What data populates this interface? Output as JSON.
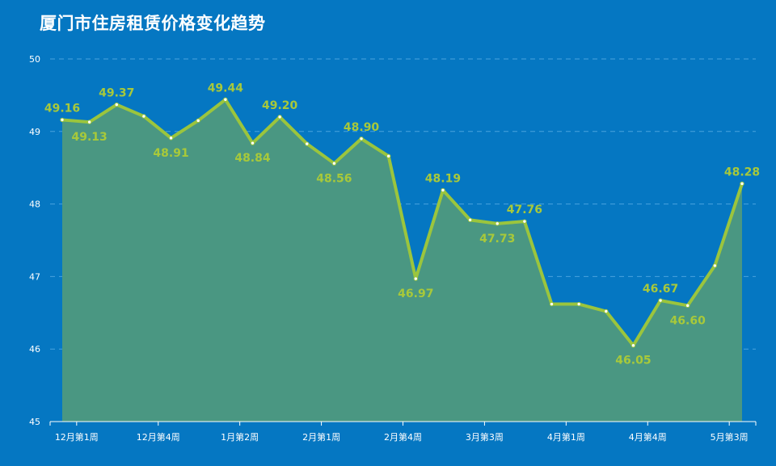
{
  "title": "厦门市住房租赁价格变化趋势",
  "chart_data": {
    "type": "area",
    "title": "厦门市住房租赁价格变化趋势",
    "xlabel": "",
    "ylabel": "",
    "ylim": [
      45,
      50
    ],
    "yticks": [
      45,
      46,
      47,
      48,
      49,
      50
    ],
    "grid": true,
    "x_tick_labels": [
      "12月第1周",
      "12月第4周",
      "1月第2周",
      "2月第1周",
      "2月第4周",
      "3月第3周",
      "4月第1周",
      "4月第4周",
      "5月第3周"
    ],
    "line_color": "#9bc53d",
    "area_color": "#4a9782",
    "label_color": "#a8c93a",
    "series": [
      {
        "values": [
          49.16,
          49.13,
          49.37,
          49.21,
          48.91,
          49.15,
          49.44,
          48.84,
          49.2,
          48.83,
          48.56,
          48.9,
          48.66,
          46.97,
          48.19,
          47.78,
          47.73,
          47.76,
          46.62,
          46.62,
          46.52,
          46.05,
          46.67,
          46.6,
          47.15,
          48.28
        ],
        "labels": [
          "49.16",
          "49.13",
          "49.37",
          "",
          "48.91",
          "",
          "49.44",
          "48.84",
          "49.20",
          "",
          "48.56",
          "48.90",
          "",
          "46.97",
          "48.19",
          "",
          "47.73",
          "47.76",
          "",
          "",
          "",
          "46.05",
          "46.67",
          "46.60",
          "",
          "48.28"
        ]
      }
    ]
  }
}
